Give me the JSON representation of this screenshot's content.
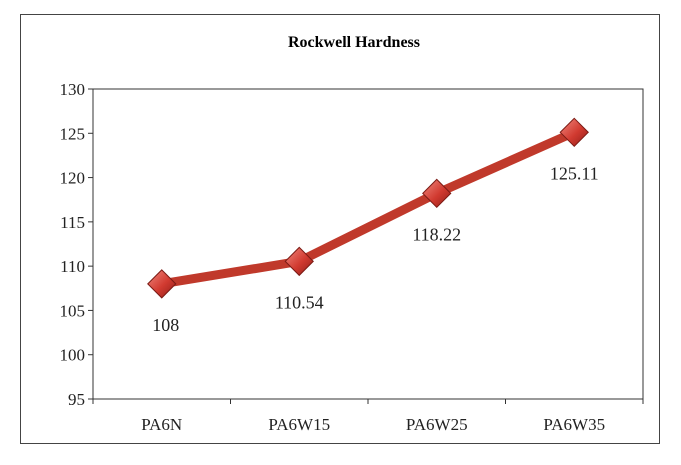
{
  "chart_data": {
    "type": "line",
    "title": "Rockwell Hardness",
    "xlabel": "",
    "ylabel": "",
    "categories": [
      "PA6N",
      "PA6W15",
      "PA6W25",
      "PA6W35"
    ],
    "series": [
      {
        "values": [
          108,
          110.54,
          118.22,
          125.11
        ],
        "labels": [
          "108",
          "110.54",
          "118.22",
          "125.11"
        ]
      }
    ],
    "ylim": [
      95,
      130
    ],
    "yticks": [
      95,
      100,
      105,
      110,
      115,
      120,
      125,
      130
    ],
    "grid": false,
    "legend": "none",
    "line_color": "#c0392b",
    "marker_color": "#d63a32",
    "marker": "diamond"
  }
}
